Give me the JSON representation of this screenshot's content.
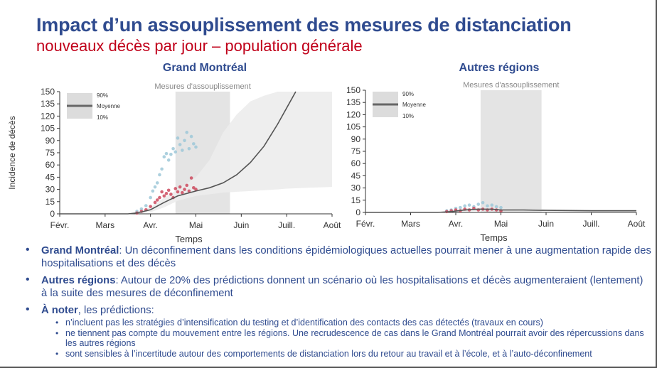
{
  "header": {
    "title": "Impact d’un assouplissement des mesures de distanciation",
    "subtitle": "nouveaux décès par jour – population générale"
  },
  "chart_data": [
    {
      "type": "line",
      "title": "Grand Montréal",
      "xlabel": "Temps",
      "ylabel": "Incidence de décès",
      "ylim": [
        0,
        150
      ],
      "yticks": [
        "0",
        "15",
        "30",
        "45",
        "60",
        "75",
        "90",
        "105",
        "120",
        "135",
        "150"
      ],
      "xticks": [
        "Févr.",
        "Mars",
        "Avr.",
        "Mai",
        "Juin",
        "Juill.",
        "Août"
      ],
      "shaded_region": {
        "label": "Mesures d'assouplissement",
        "from": "Avr.+0.55",
        "to": "Mai+0.75"
      },
      "legend": {
        "upper": "90%",
        "mean": "Moyenne",
        "lower": "10%",
        "placement": "top-left"
      },
      "series": [
        {
          "kind": "mean",
          "x": [
            0,
            1,
            1.5,
            1.7,
            2.0,
            2.3,
            2.6,
            3.0,
            3.3,
            3.6,
            3.9,
            4.2,
            4.5,
            4.8,
            5.0,
            5.2
          ],
          "y": [
            0,
            0,
            0,
            1,
            5,
            14,
            22,
            28,
            32,
            38,
            48,
            63,
            83,
            110,
            130,
            150
          ]
        },
        {
          "kind": "band_upper",
          "x": [
            0,
            1,
            1.5,
            1.7,
            2.0,
            2.3,
            2.6,
            3.0,
            3.3,
            3.6,
            3.9,
            4.2,
            4.5,
            4.8,
            5.0
          ],
          "y": [
            0,
            0,
            0,
            2,
            8,
            20,
            30,
            45,
            66,
            100,
            122,
            138,
            145,
            150,
            150
          ]
        },
        {
          "kind": "band_lower",
          "x": [
            0,
            1,
            1.5,
            1.7,
            2.0,
            2.3,
            2.6,
            3.0,
            3.3,
            3.6,
            3.9,
            4.2,
            4.5,
            4.8,
            5.0,
            5.5,
            6.0
          ],
          "y": [
            0,
            0,
            0,
            0,
            2,
            8,
            16,
            22,
            24,
            26,
            27,
            28,
            29,
            30,
            31,
            32,
            33
          ]
        },
        {
          "kind": "obs_blue",
          "x": [
            1.7,
            1.8,
            1.9,
            2.0,
            2.05,
            2.1,
            2.15,
            2.2,
            2.25,
            2.3,
            2.35,
            2.4,
            2.45,
            2.5,
            2.55,
            2.6,
            2.65,
            2.7,
            2.75,
            2.8,
            2.85,
            2.9,
            2.95,
            3.0
          ],
          "y": [
            3,
            6,
            10,
            20,
            28,
            33,
            38,
            48,
            55,
            70,
            74,
            66,
            73,
            80,
            76,
            93,
            85,
            78,
            90,
            100,
            80,
            95,
            86,
            82
          ]
        },
        {
          "kind": "obs_red",
          "x": [
            1.7,
            1.8,
            1.9,
            2.0,
            2.1,
            2.15,
            2.2,
            2.25,
            2.3,
            2.35,
            2.4,
            2.45,
            2.5,
            2.55,
            2.6,
            2.65,
            2.7,
            2.75,
            2.8,
            2.85,
            2.9,
            2.95,
            3.0
          ],
          "y": [
            1,
            3,
            5,
            9,
            14,
            17,
            20,
            27,
            22,
            25,
            29,
            24,
            20,
            31,
            27,
            33,
            26,
            30,
            35,
            28,
            44,
            32,
            30
          ]
        }
      ]
    },
    {
      "type": "line",
      "title": "Autres régions",
      "xlabel": "Temps",
      "ylabel": "",
      "ylim": [
        0,
        150
      ],
      "yticks": [
        "0",
        "15",
        "30",
        "45",
        "60",
        "75",
        "90",
        "105",
        "120",
        "135",
        "150"
      ],
      "xticks": [
        "Févr.",
        "Mars",
        "Avr.",
        "Mai",
        "Juin",
        "Juill.",
        "Août"
      ],
      "shaded_region": {
        "label": "Mesures d'assouplissement",
        "from": "Avr.+0.55",
        "to": "Mai+0.9"
      },
      "legend": {
        "upper": "90%",
        "mean": "Moyenne",
        "lower": "10%",
        "placement": "top-left"
      },
      "series": [
        {
          "kind": "mean",
          "x": [
            0,
            1,
            1.6,
            1.9,
            2.2,
            2.5,
            2.8,
            3.0,
            3.5,
            4.0,
            5.0,
            6.0
          ],
          "y": [
            0,
            0,
            0,
            1,
            3,
            4,
            4,
            3,
            3,
            2.5,
            2,
            2
          ]
        },
        {
          "kind": "band_upper",
          "x": [
            0,
            1,
            1.6,
            1.9,
            2.2,
            2.5,
            2.8,
            3.0,
            3.5,
            4.0,
            5.0,
            6.0
          ],
          "y": [
            0,
            0,
            0,
            2,
            5,
            6,
            6,
            5,
            4.5,
            4,
            3.5,
            3.5
          ]
        },
        {
          "kind": "band_lower",
          "x": [
            0,
            1,
            1.6,
            1.9,
            2.2,
            2.5,
            2.8,
            3.0,
            3.5,
            4.0,
            5.0,
            6.0
          ],
          "y": [
            0,
            0,
            0,
            0,
            1,
            2,
            2,
            1.5,
            1.5,
            1,
            1,
            1
          ]
        },
        {
          "kind": "obs_blue",
          "x": [
            1.8,
            1.9,
            2.0,
            2.1,
            2.2,
            2.3,
            2.4,
            2.5,
            2.6,
            2.7,
            2.8,
            2.9,
            3.0
          ],
          "y": [
            2,
            3,
            5,
            6,
            8,
            9,
            7,
            10,
            12,
            8,
            9,
            7,
            6
          ]
        },
        {
          "kind": "obs_red",
          "x": [
            1.8,
            1.9,
            2.0,
            2.1,
            2.2,
            2.3,
            2.4,
            2.5,
            2.6,
            2.7,
            2.8,
            2.9,
            3.0
          ],
          "y": [
            1,
            2,
            3,
            2,
            4,
            3,
            5,
            3,
            4,
            3,
            4,
            3,
            2
          ]
        }
      ]
    }
  ],
  "bullets": [
    {
      "bold": "Grand Montréal",
      "text": ": Un déconfinement dans les conditions épidémiologiques actuelles pourrait mener à une augmentation rapide des hospitalisations et des décès"
    },
    {
      "bold": "Autres régions",
      "text": ": Autour de 20% des prédictions donnent un scénario où les hospitalisations et décès augmenteraient (lentement) à la suite des mesures de déconfinement"
    },
    {
      "bold": "À noter",
      "text": ", les prédictions:",
      "subs": [
        "n’incluent pas les stratégies d’intensification du testing et d’identification des contacts des cas détectés (travaux en cours)",
        "ne tiennent pas compte du mouvement entre les régions. Une recrudescence de cas dans le Grand Montréal pourrait avoir des répercussions dans les autres régions",
        "sont sensibles à l’incertitude autour des comportements de distanciation lors du retour au travail et à l’école, et à l’auto-déconfinement"
      ]
    }
  ]
}
